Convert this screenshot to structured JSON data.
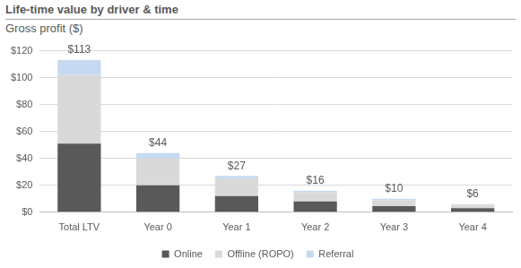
{
  "chart_data": {
    "type": "bar",
    "title": "Life-time value by driver & time",
    "subtitle": "Gross profit ($)",
    "categories": [
      "Total LTV",
      "Year 0",
      "Year 1",
      "Year 2",
      "Year 3",
      "Year 4"
    ],
    "series": [
      {
        "name": "Online",
        "color": "#595959",
        "values": [
          51,
          20,
          12,
          8,
          4.5,
          3
        ]
      },
      {
        "name": "Offline (ROPO)",
        "color": "#d9d9d9",
        "values": [
          51,
          20,
          13,
          7,
          4.5,
          2.5
        ]
      },
      {
        "name": "Referral",
        "color": "#c6d9f1",
        "values": [
          11,
          4,
          2,
          1,
          1,
          0.5
        ]
      }
    ],
    "totals": [
      113,
      44,
      27,
      16,
      10,
      6
    ],
    "total_labels": [
      "$113",
      "$44",
      "$27",
      "$16",
      "$10",
      "$6"
    ],
    "stacked": true,
    "ylim": [
      0,
      120
    ],
    "yticks": [
      {
        "value": 0,
        "label": "$0"
      },
      {
        "value": 20,
        "label": "$20"
      },
      {
        "value": 40,
        "label": "$40"
      },
      {
        "value": 60,
        "label": "$60"
      },
      {
        "value": 80,
        "label": "$80"
      },
      {
        "value": 100,
        "label": "$100"
      },
      {
        "value": 120,
        "label": "$120"
      }
    ],
    "grid": true,
    "legend": "bottom"
  }
}
